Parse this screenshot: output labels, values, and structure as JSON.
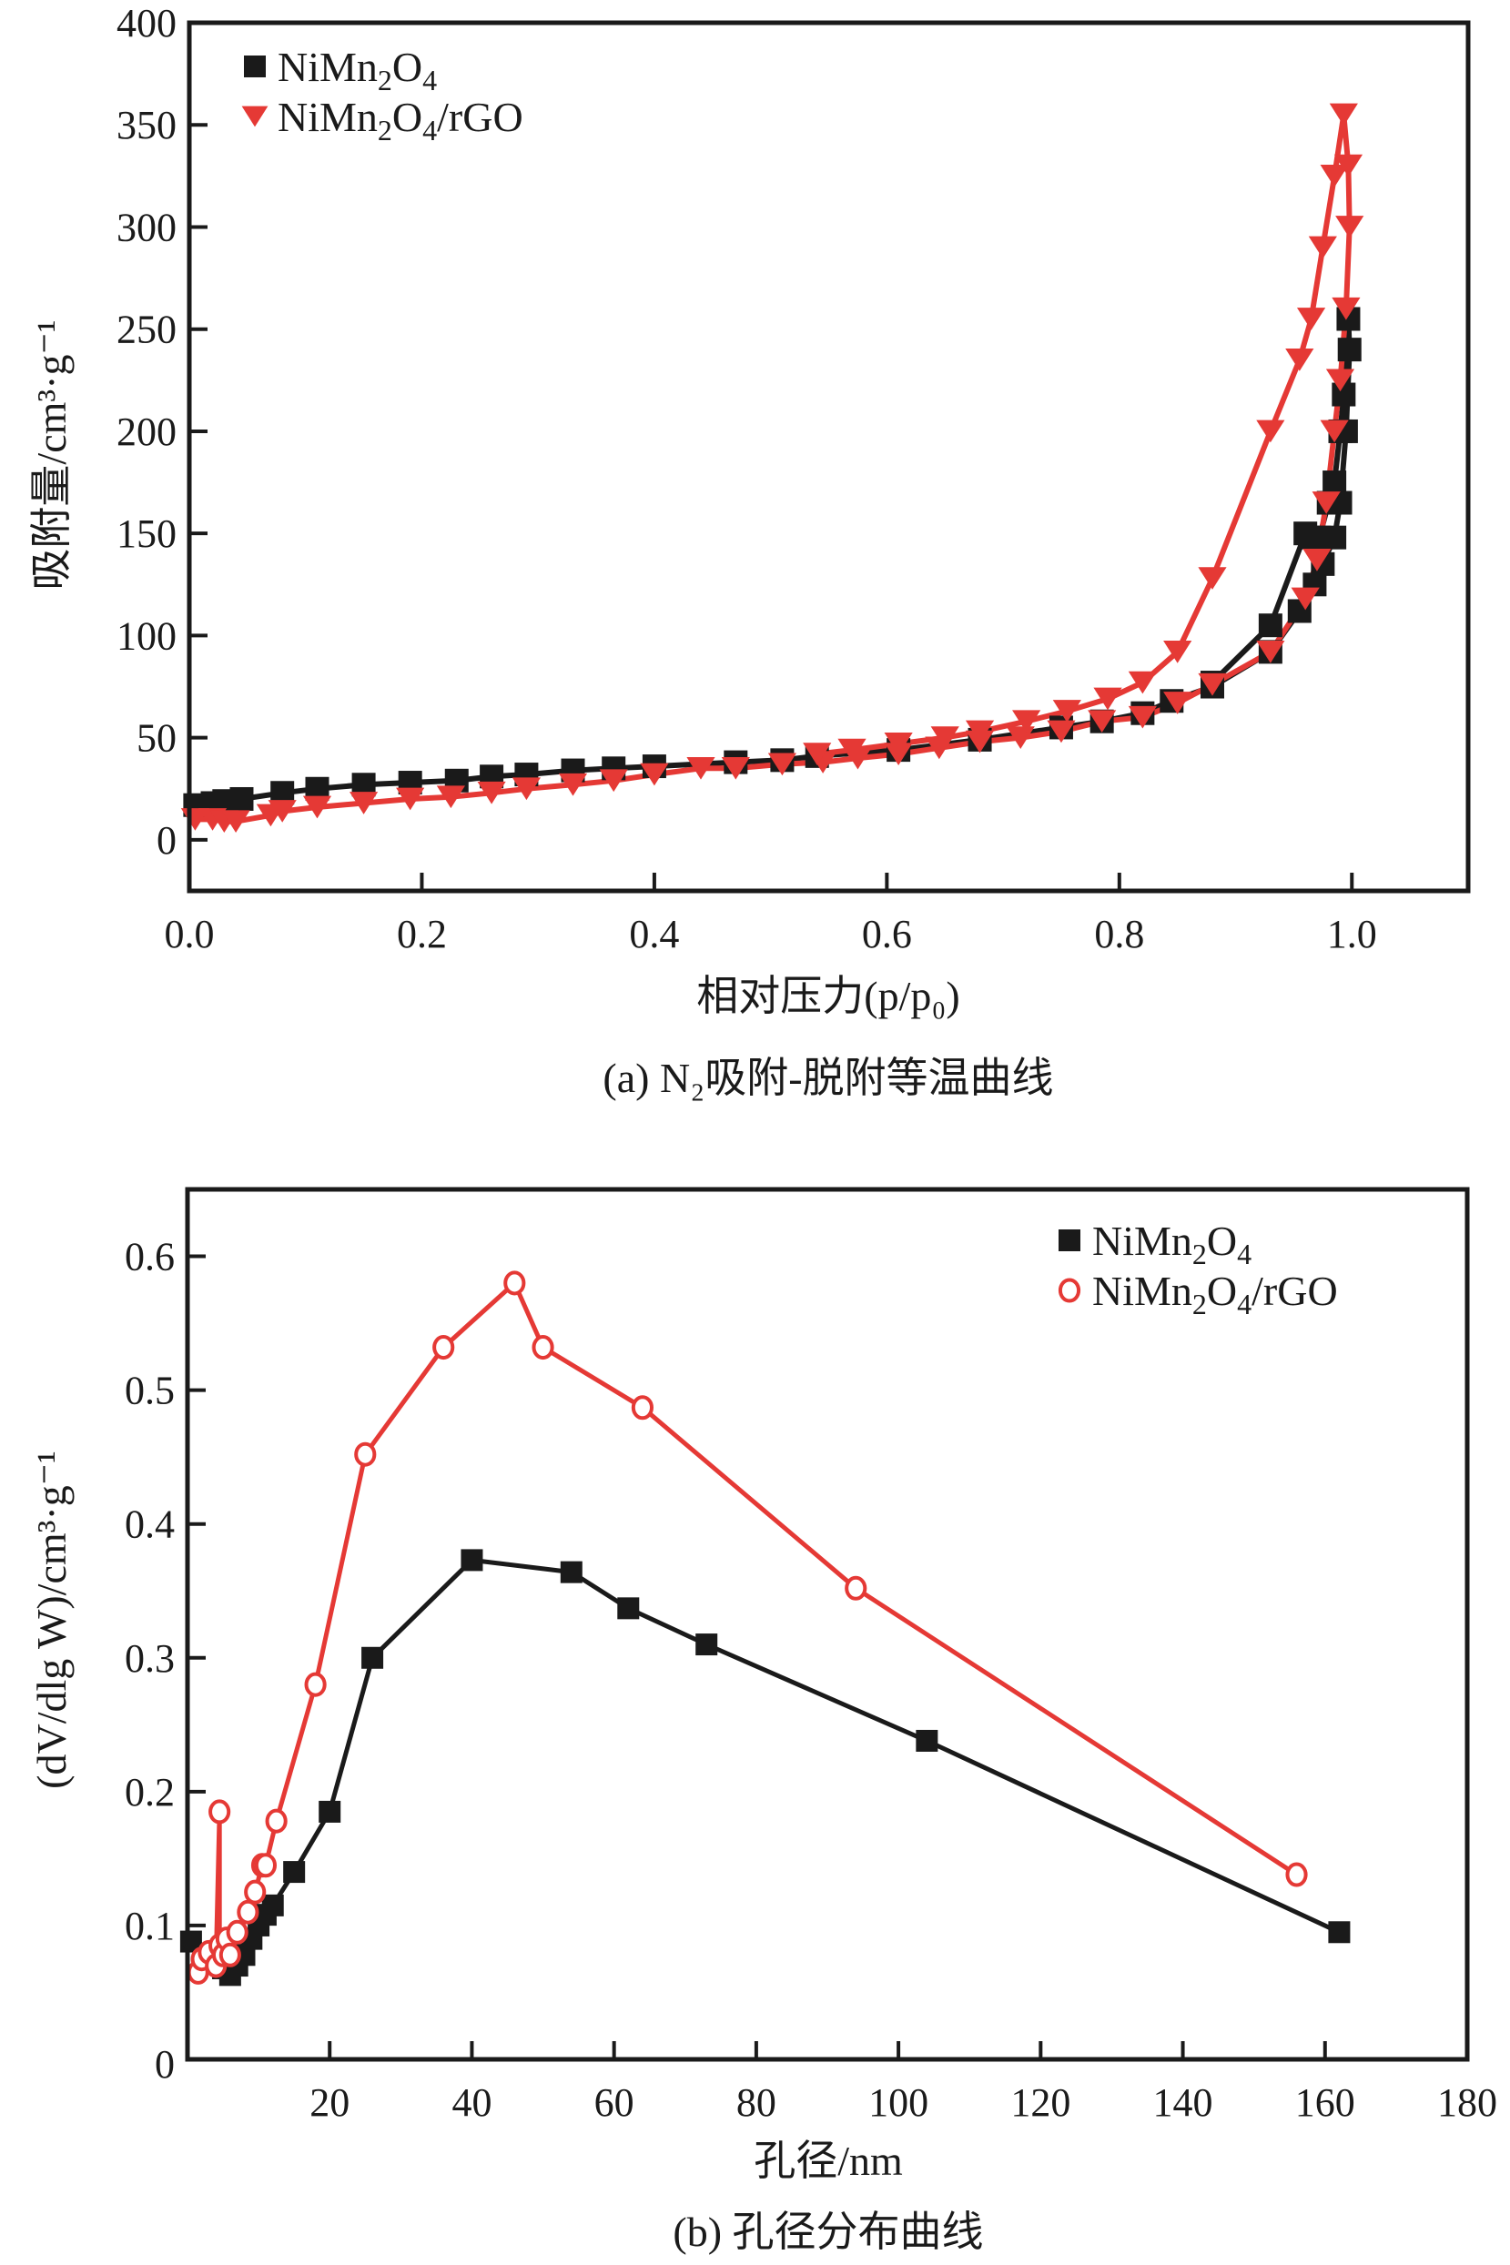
{
  "chart_data": [
    {
      "id": "a",
      "type": "line",
      "caption": "(a) N₂吸附-脱附等温曲线",
      "xlabel": "相对压力(p/p₀)",
      "ylabel": "吸附量/cm³·g⁻¹",
      "xlim": [
        0.0,
        1.1
      ],
      "ylim": [
        -25,
        400
      ],
      "xticks": [
        0.0,
        0.2,
        0.4,
        0.6,
        0.8,
        1.0
      ],
      "xtick_labels": [
        "0.0",
        "0.2",
        "0.4",
        "0.6",
        "0.8",
        "1.0"
      ],
      "yticks": [
        0,
        50,
        100,
        150,
        200,
        250,
        300,
        350,
        400
      ],
      "ytick_labels": [
        "0",
        "50",
        "100",
        "150",
        "200",
        "250",
        "300",
        "350",
        "400"
      ],
      "grid": false,
      "legend_position": "top-left",
      "series": [
        {
          "name": "NiMn2O4",
          "label_parts": [
            "NiMn",
            "2",
            "O",
            "4",
            ""
          ],
          "color": "#1a1a1a",
          "marker": "square",
          "x": [
            0.005,
            0.02,
            0.03,
            0.045,
            0.08,
            0.11,
            0.15,
            0.19,
            0.23,
            0.26,
            0.29,
            0.33,
            0.365,
            0.4,
            0.47,
            0.51,
            0.54,
            0.61,
            0.68,
            0.75,
            0.785,
            0.82,
            0.845,
            0.88,
            0.93,
            0.955,
            0.968,
            0.975,
            0.985,
            0.99,
            0.995,
            0.998,
            0.997,
            0.993,
            0.99,
            0.985,
            0.98,
            0.972,
            0.965,
            0.96,
            0.93,
            0.88
          ],
          "y": [
            17,
            18,
            19,
            20,
            23,
            25,
            27,
            28,
            29,
            31,
            32,
            34,
            35,
            36,
            38,
            39,
            41,
            44,
            49,
            55,
            58,
            62,
            68,
            75,
            92,
            112,
            125,
            135,
            148,
            165,
            200,
            240,
            255,
            218,
            200,
            175,
            165,
            148,
            148,
            150,
            105,
            77
          ]
        },
        {
          "name": "NiMn2O4/rGO",
          "label_parts": [
            "NiMn",
            "2",
            "O",
            "4",
            "/rGO"
          ],
          "color": "#e53935",
          "marker": "triangle-down",
          "x": [
            0.005,
            0.02,
            0.03,
            0.04,
            0.07,
            0.08,
            0.11,
            0.15,
            0.19,
            0.225,
            0.26,
            0.29,
            0.33,
            0.365,
            0.4,
            0.44,
            0.47,
            0.51,
            0.545,
            0.575,
            0.61,
            0.645,
            0.68,
            0.715,
            0.75,
            0.785,
            0.82,
            0.85,
            0.88,
            0.93,
            0.96,
            0.97,
            0.978,
            0.985,
            0.99,
            0.995,
            0.998,
            0.997,
            0.993,
            0.985,
            0.975,
            0.965,
            0.955,
            0.93,
            0.88,
            0.85,
            0.82,
            0.79,
            0.755,
            0.72,
            0.68,
            0.65,
            0.61,
            0.57,
            0.54
          ],
          "y": [
            10,
            10,
            9,
            9,
            12,
            14,
            16,
            18,
            20,
            21,
            23,
            25,
            27,
            29,
            32,
            35,
            35,
            37,
            38,
            40,
            42,
            45,
            48,
            50,
            53,
            58,
            60,
            67,
            76,
            92,
            118,
            137,
            165,
            200,
            225,
            260,
            300,
            330,
            355,
            325,
            290,
            255,
            235,
            200,
            128,
            92,
            77,
            69,
            63,
            58,
            53,
            50,
            47,
            44,
            42
          ]
        }
      ]
    },
    {
      "id": "b",
      "type": "line",
      "caption": "(b) 孔径分布曲线",
      "xlabel": "孔径/nm",
      "ylabel": "(dV/dlg W)/cm³·g⁻¹",
      "xlim": [
        0,
        180
      ],
      "ylim": [
        0,
        0.65
      ],
      "xticks": [
        20,
        40,
        60,
        80,
        100,
        120,
        140,
        160,
        180
      ],
      "xtick_labels": [
        "20",
        "40",
        "60",
        "80",
        "100",
        "120",
        "140",
        "160",
        "180"
      ],
      "yticks": [
        0,
        0.1,
        0.2,
        0.3,
        0.4,
        0.5,
        0.6
      ],
      "ytick_labels": [
        "0",
        "0.1",
        "0.2",
        "0.3",
        "0.4",
        "0.5",
        "0.6"
      ],
      "grid": false,
      "legend_position": "top-right",
      "series": [
        {
          "name": "NiMn2O4",
          "label_parts": [
            "NiMn",
            "2",
            "O",
            "4",
            ""
          ],
          "color": "#1a1a1a",
          "marker": "square",
          "x": [
            0.5,
            4,
            5,
            6,
            7,
            8,
            9,
            10,
            11,
            12,
            15,
            20,
            26,
            40,
            54,
            62,
            73,
            104,
            162
          ],
          "y": [
            0.088,
            0.075,
            0.068,
            0.063,
            0.07,
            0.078,
            0.09,
            0.1,
            0.108,
            0.115,
            0.14,
            0.185,
            0.3,
            0.373,
            0.364,
            0.337,
            0.31,
            0.238,
            0.095
          ]
        },
        {
          "name": "NiMn2O4/rGO",
          "label_parts": [
            "NiMn",
            "2",
            "O",
            "4",
            "/rGO"
          ],
          "color": "#e53935",
          "marker": "circle-open",
          "x": [
            1.5,
            2,
            3,
            4,
            4.5,
            4.5,
            5,
            5.5,
            6,
            7,
            8.5,
            9.5,
            10.5,
            11,
            12.5,
            18,
            25,
            36,
            46,
            50,
            64,
            94,
            156
          ],
          "y": [
            0.065,
            0.075,
            0.08,
            0.07,
            0.185,
            0.085,
            0.078,
            0.09,
            0.078,
            0.095,
            0.11,
            0.125,
            0.145,
            0.145,
            0.178,
            0.28,
            0.452,
            0.532,
            0.58,
            0.532,
            0.487,
            0.352,
            0.138
          ]
        }
      ]
    }
  ]
}
